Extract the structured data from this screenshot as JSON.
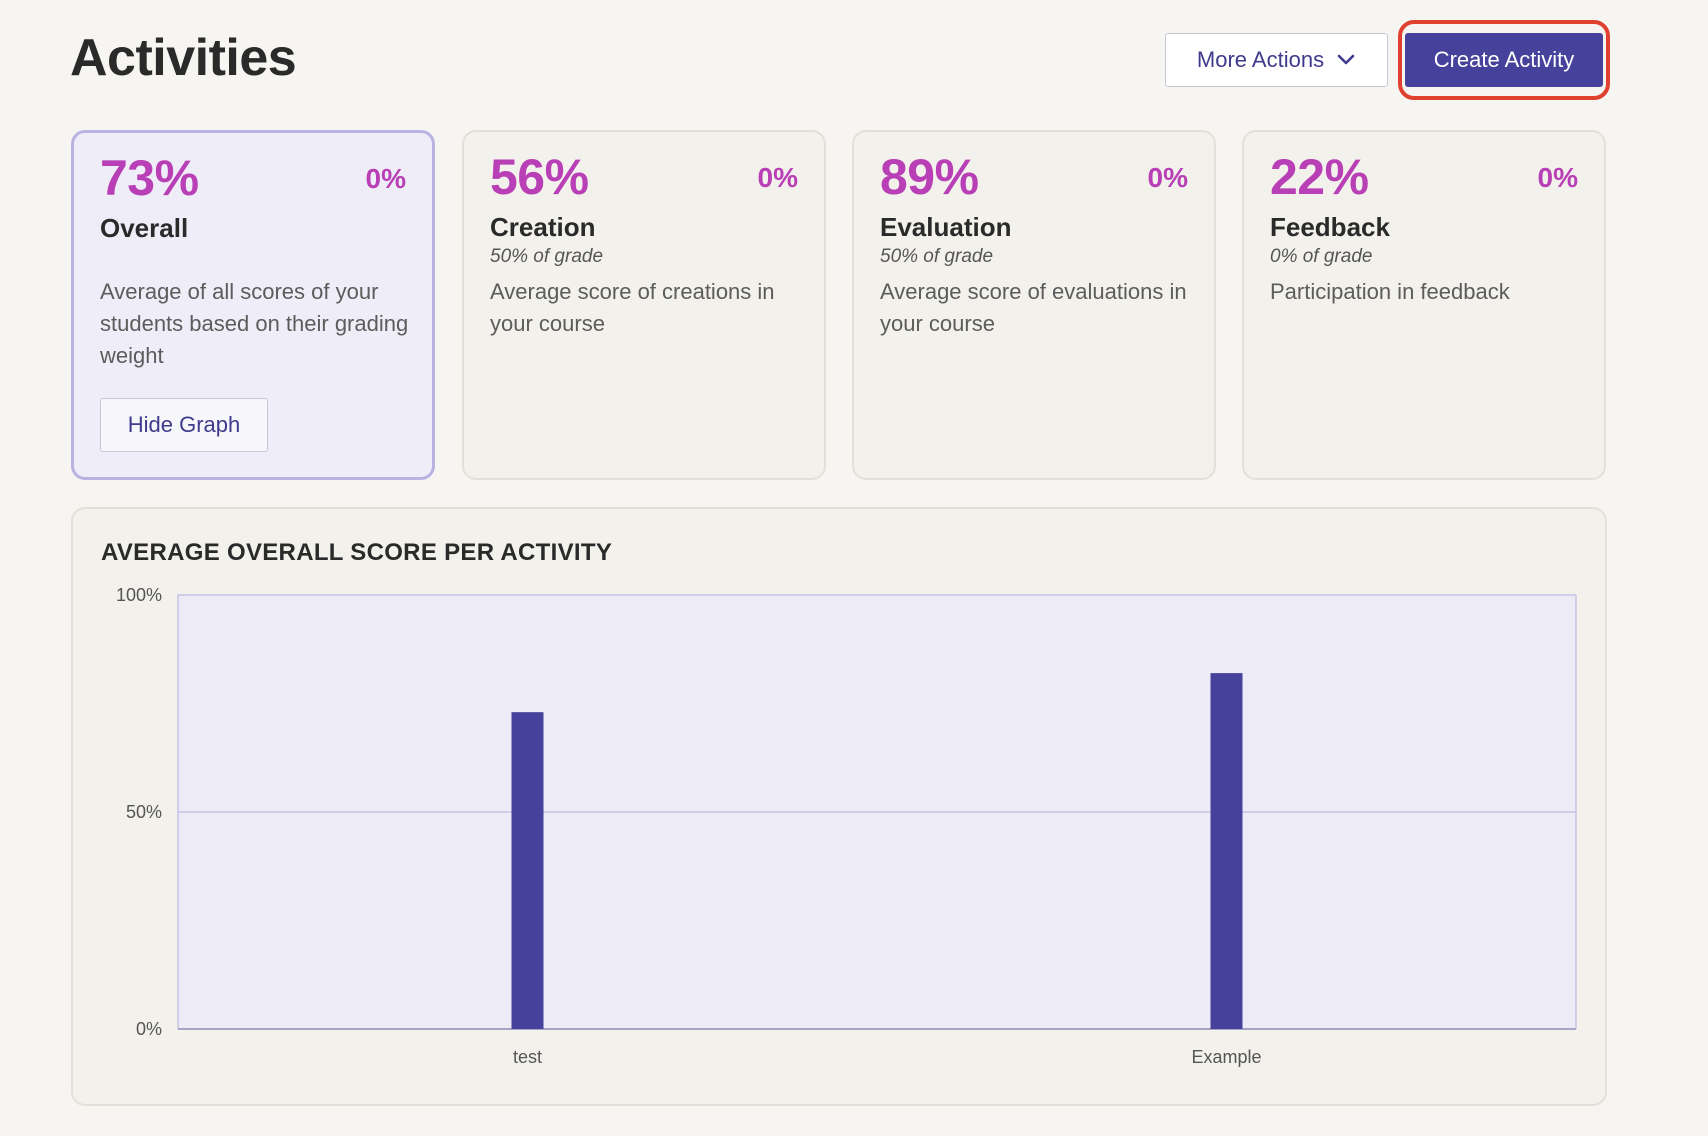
{
  "header": {
    "title": "Activities",
    "more_actions_label": "More Actions",
    "create_activity_label": "Create Activity"
  },
  "cards": [
    {
      "pct": "73%",
      "delta": "0%",
      "label": "Overall",
      "weight": "",
      "desc": "Average of all scores of your students based on their grading weight",
      "button": "Hide Graph"
    },
    {
      "pct": "56%",
      "delta": "0%",
      "label": "Creation",
      "weight": "50% of grade",
      "desc": "Average score of creations in your course"
    },
    {
      "pct": "89%",
      "delta": "0%",
      "label": "Evaluation",
      "weight": "50% of grade",
      "desc": "Average score of evaluations in your course"
    },
    {
      "pct": "22%",
      "delta": "0%",
      "label": "Feedback",
      "weight": "0% of grade",
      "desc": "Participation in feedback"
    }
  ],
  "colors": {
    "accent": "#46419b",
    "highlight": "#b83fb5",
    "focus_ring": "#e0402e",
    "plot_bg": "#edebf5",
    "gridline": "#c7c2e6"
  },
  "icons": {
    "more_actions": "chevron-down-icon"
  },
  "chart_data": {
    "type": "bar",
    "title": "AVERAGE OVERALL SCORE PER ACTIVITY",
    "categories": [
      "test",
      "Example"
    ],
    "values": [
      73,
      82
    ],
    "ylim": [
      0,
      100
    ],
    "yticks": [
      "0%",
      "50%",
      "100%"
    ],
    "xlabel": "",
    "ylabel": "",
    "grid": true
  }
}
